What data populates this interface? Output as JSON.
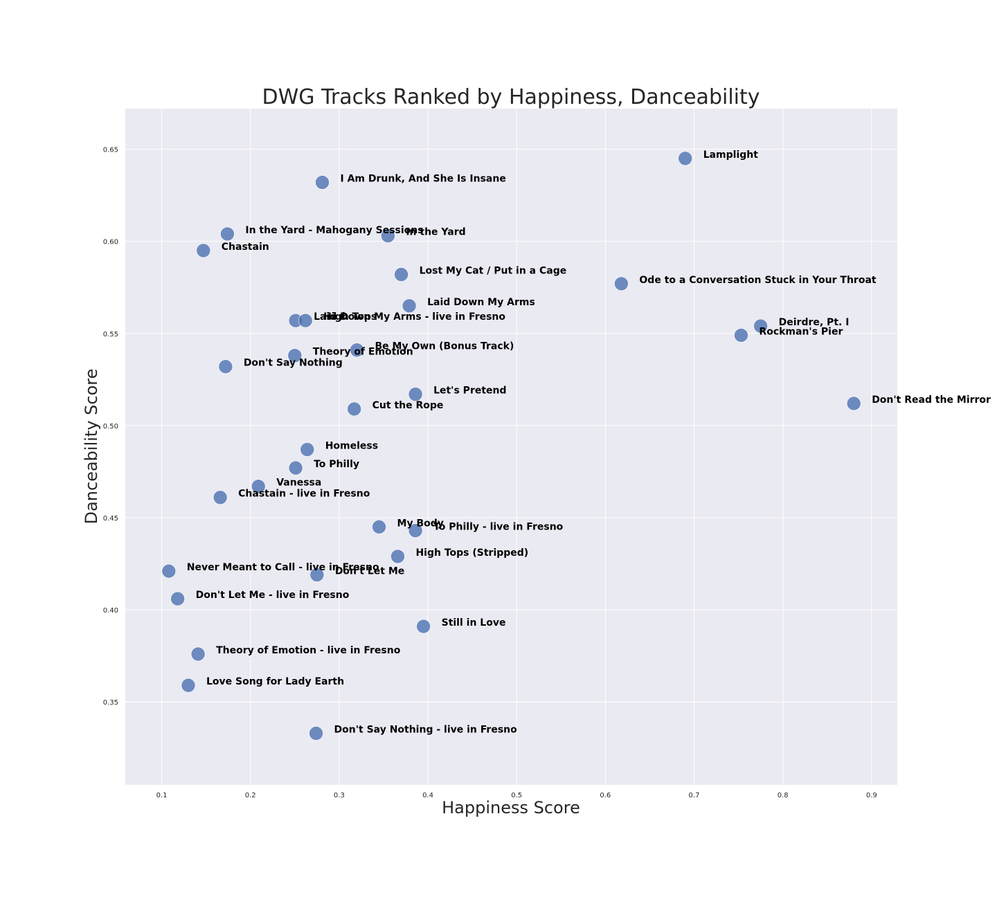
{
  "chart_data": {
    "type": "scatter",
    "title": "DWG Tracks Ranked by Happiness, Danceability",
    "xlabel": "Happiness Score",
    "ylabel": "Danceability Score",
    "xlim": [
      0.059,
      0.929
    ],
    "ylim": [
      0.305,
      0.672
    ],
    "xticks": [
      0.1,
      0.2,
      0.3,
      0.4,
      0.5,
      0.6,
      0.7,
      0.8,
      0.9
    ],
    "xtick_labels": [
      "0.1",
      "0.2",
      "0.3",
      "0.4",
      "0.5",
      "0.6",
      "0.7",
      "0.8",
      "0.9"
    ],
    "yticks": [
      0.35,
      0.4,
      0.45,
      0.5,
      0.55,
      0.6,
      0.65
    ],
    "ytick_labels": [
      "0.35",
      "0.40",
      "0.45",
      "0.50",
      "0.55",
      "0.60",
      "0.65"
    ],
    "grid": true,
    "colors": {
      "point": "#4c72b0",
      "background": "#eaeaf2",
      "grid": "#ffffff"
    },
    "points": [
      {
        "label": "Lamplight",
        "x": 0.69,
        "y": 0.645
      },
      {
        "label": "I Am Drunk, And She Is Insane",
        "x": 0.281,
        "y": 0.632
      },
      {
        "label": "In the Yard - Mahogany Sessions",
        "x": 0.174,
        "y": 0.604
      },
      {
        "label": "In the Yard",
        "x": 0.355,
        "y": 0.603
      },
      {
        "label": "Chastain",
        "x": 0.147,
        "y": 0.595
      },
      {
        "label": "Lost My Cat / Put in a Cage",
        "x": 0.37,
        "y": 0.582
      },
      {
        "label": "Ode to a Conversation Stuck in Your Throat",
        "x": 0.618,
        "y": 0.577
      },
      {
        "label": "Laid Down My Arms",
        "x": 0.379,
        "y": 0.565
      },
      {
        "label": "Laid Down My Arms - live in Fresno",
        "x": 0.251,
        "y": 0.557
      },
      {
        "label": "High Tops",
        "x": 0.262,
        "y": 0.557
      },
      {
        "label": "Deirdre, Pt. I",
        "x": 0.775,
        "y": 0.554
      },
      {
        "label": "Rockman's Pier",
        "x": 0.753,
        "y": 0.549
      },
      {
        "label": "Be My Own (Bonus Track)",
        "x": 0.32,
        "y": 0.541
      },
      {
        "label": "Theory of Emotion",
        "x": 0.25,
        "y": 0.538
      },
      {
        "label": "Don't Say Nothing",
        "x": 0.172,
        "y": 0.532
      },
      {
        "label": "Let's Pretend",
        "x": 0.386,
        "y": 0.517
      },
      {
        "label": "Don't Read the Mirror",
        "x": 0.88,
        "y": 0.512
      },
      {
        "label": "Cut the Rope",
        "x": 0.317,
        "y": 0.509
      },
      {
        "label": "Homeless",
        "x": 0.264,
        "y": 0.487
      },
      {
        "label": "To Philly",
        "x": 0.251,
        "y": 0.477
      },
      {
        "label": "Vanessa",
        "x": 0.209,
        "y": 0.467
      },
      {
        "label": "Chastain - live in Fresno",
        "x": 0.166,
        "y": 0.461
      },
      {
        "label": "My Body",
        "x": 0.345,
        "y": 0.445
      },
      {
        "label": "To Philly - live in Fresno",
        "x": 0.386,
        "y": 0.443
      },
      {
        "label": "High Tops (Stripped)",
        "x": 0.366,
        "y": 0.429
      },
      {
        "label": "Never Meant to Call - live in Fresno",
        "x": 0.108,
        "y": 0.421
      },
      {
        "label": "Don't Let Me",
        "x": 0.275,
        "y": 0.419
      },
      {
        "label": "Don't Let Me - live in Fresno",
        "x": 0.118,
        "y": 0.406
      },
      {
        "label": "Still in Love",
        "x": 0.395,
        "y": 0.391
      },
      {
        "label": "Theory of Emotion - live in Fresno",
        "x": 0.141,
        "y": 0.376
      },
      {
        "label": "Love Song for Lady Earth",
        "x": 0.13,
        "y": 0.359
      },
      {
        "label": "Don't Say Nothing - live in Fresno",
        "x": 0.274,
        "y": 0.333
      }
    ]
  }
}
